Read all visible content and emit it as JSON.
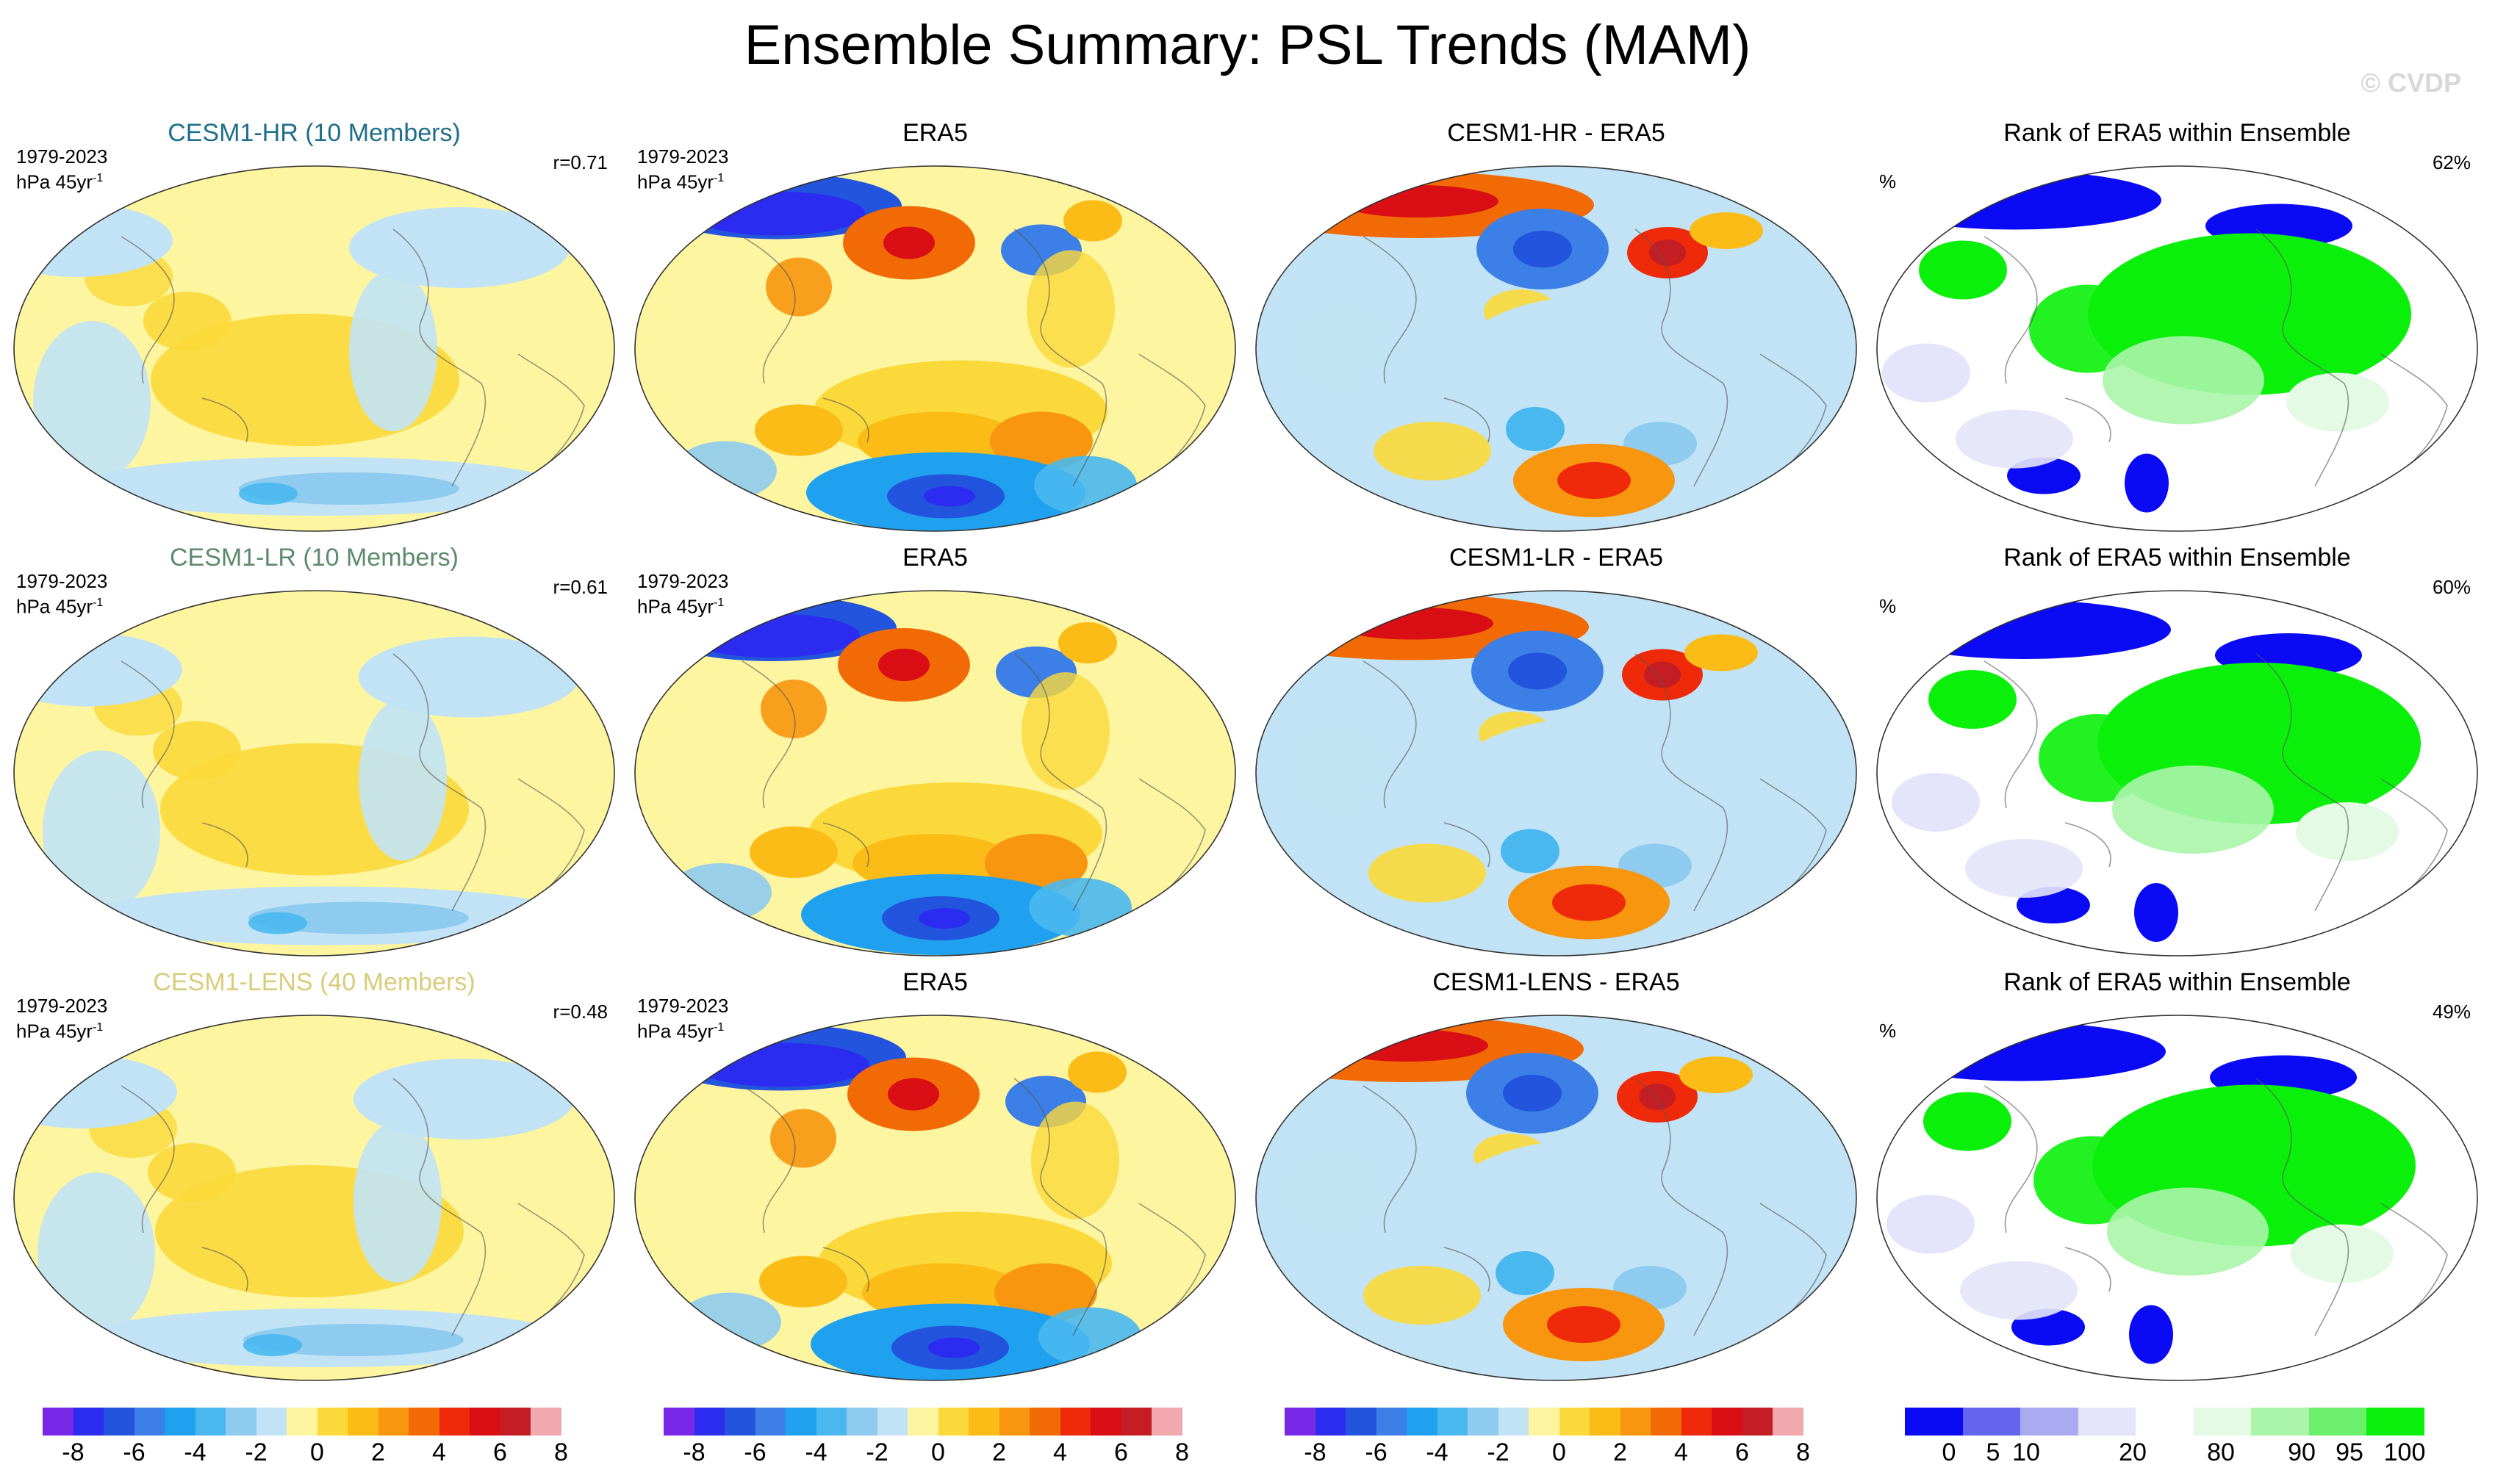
{
  "figure": {
    "title": "Ensemble Summary: PSL Trends (MAM)",
    "watermark": "© CVDP"
  },
  "rows": [
    {
      "model": "CESM1-HR (10 Members)",
      "model_color": "#1f6e8c",
      "period": "1979-2023",
      "units_base": "hPa 45yr",
      "units_exp": "-1",
      "correlation": "r=0.71",
      "obs_title": "ERA5",
      "diff_title": "CESM1-HR - ERA5",
      "rank_title": "Rank of ERA5 within Ensemble",
      "rank_unit": "%",
      "rank_pct": "62%"
    },
    {
      "model": "CESM1-LR (10 Members)",
      "model_color": "#5e8a6e",
      "period": "1979-2023",
      "units_base": "hPa 45yr",
      "units_exp": "-1",
      "correlation": "r=0.61",
      "obs_title": "ERA5",
      "diff_title": "CESM1-LR - ERA5",
      "rank_title": "Rank of ERA5 within Ensemble",
      "rank_unit": "%",
      "rank_pct": "60%"
    },
    {
      "model": "CESM1-LENS (40 Members)",
      "model_color": "#d9cc7a",
      "period": "1979-2023",
      "units_base": "hPa 45yr",
      "units_exp": "-1",
      "correlation": "r=0.48",
      "obs_title": "ERA5",
      "diff_title": "CESM1-LENS - ERA5",
      "rank_title": "Rank of ERA5 within Ensemble",
      "rank_unit": "%",
      "rank_pct": "49%"
    }
  ],
  "colorbars": {
    "trend_colors": [
      "#7a28e8",
      "#2c2cf0",
      "#2254dd",
      "#3c7fe6",
      "#1fa1f0",
      "#49b8ef",
      "#8fcbef",
      "#c1e3f5",
      "#fdf5a0",
      "#fbd93a",
      "#fbbc17",
      "#f8960f",
      "#f26a06",
      "#ee2a0a",
      "#d90f15",
      "#c41e24",
      "#f2a9ae"
    ],
    "trend_labels": [
      "-8",
      "-6",
      "-4",
      "-2",
      "0",
      "2",
      "4",
      "6",
      "8"
    ],
    "rank_colors": [
      "#0a0af5",
      "#6464f0",
      "#aaaaf0",
      "#e4e4fa",
      "#ffffff",
      "#e4fae4",
      "#aaf5aa",
      "#6cf06c",
      "#0af00a"
    ],
    "rank_labels": [
      "0",
      "5",
      "10",
      "20",
      "80",
      "90",
      "95",
      "100"
    ]
  }
}
